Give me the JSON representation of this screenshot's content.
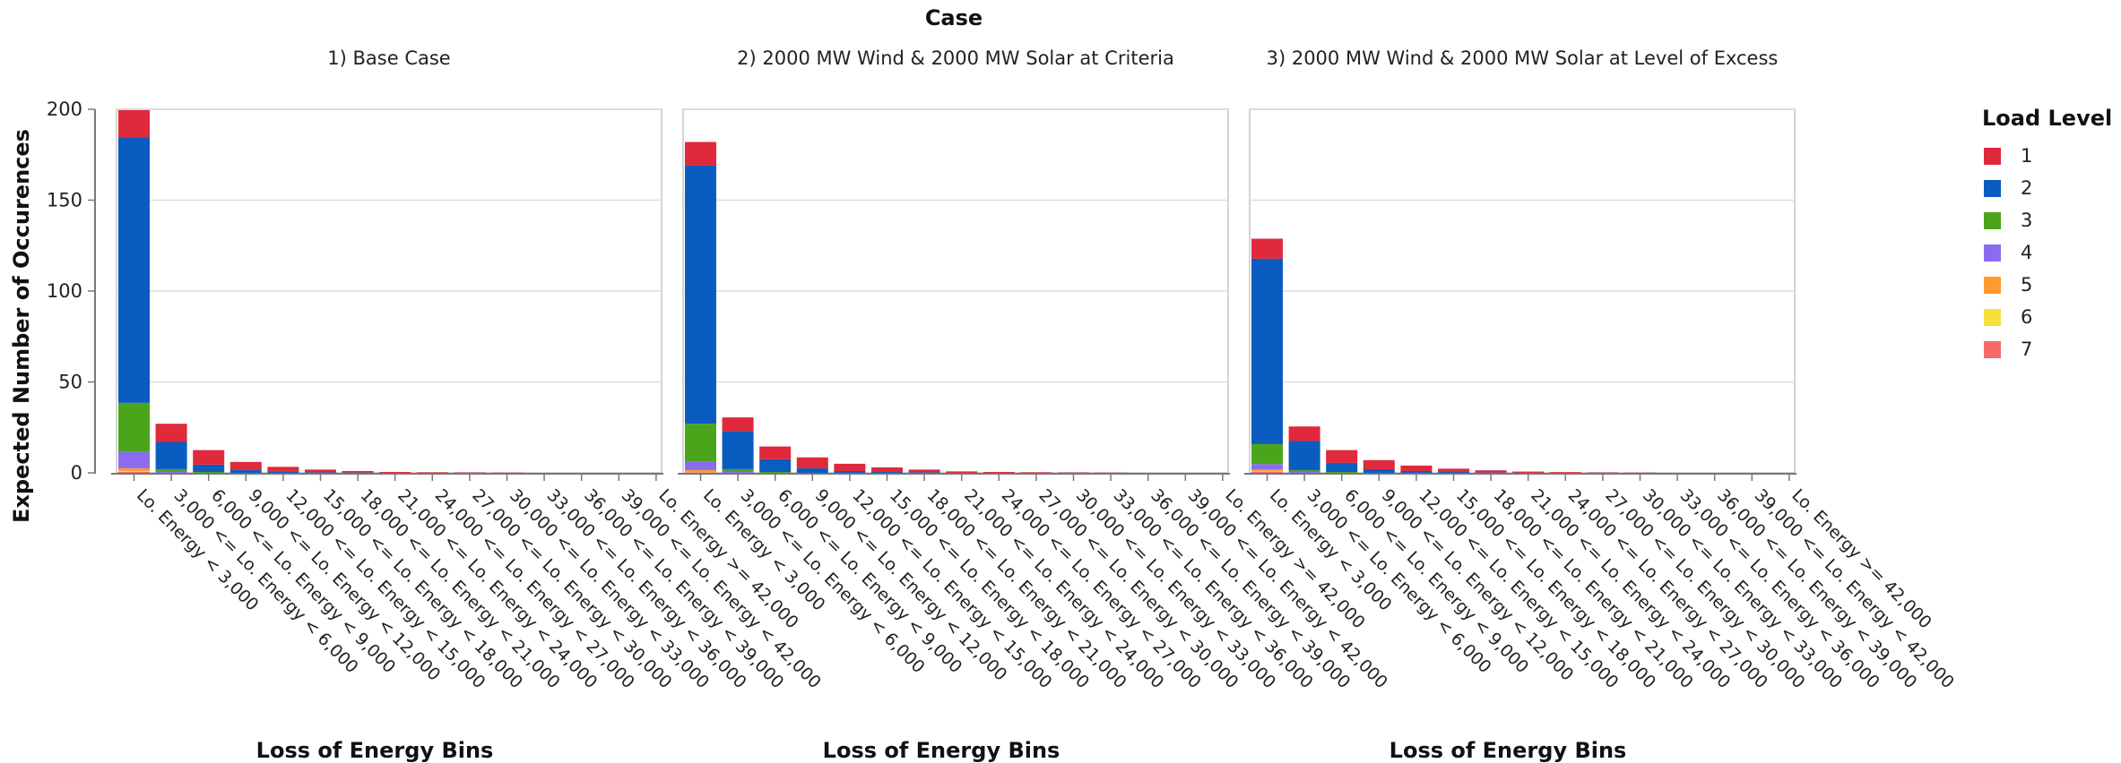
{
  "chart_data": {
    "type": "bar",
    "stacked": true,
    "title": "Case",
    "ylabel": "Expected Number of Occurences",
    "xlabel": "Loss of Energy Bins",
    "ylim": [
      0,
      200
    ],
    "yticks": [
      0,
      50,
      100,
      150,
      200
    ],
    "grid": true,
    "legend": {
      "title": "Load Level",
      "position": "right",
      "levels": [
        "1",
        "2",
        "3",
        "4",
        "5",
        "6",
        "7"
      ]
    },
    "colors": {
      "1": "#e0293b",
      "2": "#0b5cc0",
      "3": "#4aa51b",
      "4": "#8a6cf2",
      "5": "#ff9a2e",
      "6": "#f5e03e",
      "7": "#f56b6b"
    },
    "categories": [
      "Lo. Energy < 3,000",
      "3,000 <= Lo. Energy < 6,000",
      "6,000 <= Lo. Energy < 9,000",
      "9,000 <= Lo. Energy < 12,000",
      "12,000 <= Lo. Energy < 15,000",
      "15,000 <= Lo. Energy < 18,000",
      "18,000 <= Lo. Energy < 21,000",
      "21,000 <= Lo. Energy < 24,000",
      "24,000 <= Lo. Energy < 27,000",
      "27,000 <= Lo. Energy < 30,000",
      "30,000 <= Lo. Energy < 33,000",
      "33,000 <= Lo. Energy < 36,000",
      "36,000 <= Lo. Energy < 39,000",
      "39,000 <= Lo. Energy < 42,000",
      "Lo. Energy >= 42,000"
    ],
    "facets": [
      {
        "title": "1) Base Case",
        "series": [
          {
            "name": "7",
            "values": [
              0.5,
              0,
              0,
              0,
              0,
              0,
              0,
              0,
              0,
              0,
              0,
              0,
              0,
              0,
              0
            ]
          },
          {
            "name": "6",
            "values": [
              0.5,
              0,
              0,
              0,
              0,
              0,
              0,
              0,
              0,
              0,
              0,
              0,
              0,
              0,
              0
            ]
          },
          {
            "name": "5",
            "values": [
              1.5,
              0,
              0,
              0,
              0,
              0,
              0,
              0,
              0,
              0,
              0,
              0,
              0,
              0,
              0
            ]
          },
          {
            "name": "4",
            "values": [
              9,
              0.5,
              0,
              0,
              0,
              0,
              0,
              0,
              0,
              0,
              0,
              0,
              0,
              0,
              0
            ]
          },
          {
            "name": "3",
            "values": [
              27,
              1.5,
              0.5,
              0,
              0,
              0,
              0,
              0,
              0,
              0,
              0,
              0,
              0,
              0,
              0
            ]
          },
          {
            "name": "2",
            "values": [
              146,
              15,
              4,
              1.5,
              0.8,
              0.3,
              0.2,
              0,
              0,
              0,
              0,
              0,
              0,
              0,
              0
            ]
          },
          {
            "name": "1",
            "values": [
              15,
              10,
              8,
              4.5,
              2.5,
              1.5,
              0.8,
              0.5,
              0.3,
              0.2,
              0.1,
              0,
              0,
              0,
              0
            ]
          }
        ]
      },
      {
        "title": "2) 2000 MW Wind & 2000 MW Solar at Criteria",
        "series": [
          {
            "name": "7",
            "values": [
              0.3,
              0,
              0,
              0,
              0,
              0,
              0,
              0,
              0,
              0,
              0,
              0,
              0,
              0,
              0
            ]
          },
          {
            "name": "6",
            "values": [
              0.2,
              0,
              0,
              0,
              0,
              0,
              0,
              0,
              0,
              0,
              0,
              0,
              0,
              0,
              0
            ]
          },
          {
            "name": "5",
            "values": [
              1,
              0,
              0,
              0,
              0,
              0,
              0,
              0,
              0,
              0,
              0,
              0,
              0,
              0,
              0
            ]
          },
          {
            "name": "4",
            "values": [
              4.5,
              0.5,
              0,
              0,
              0,
              0,
              0,
              0,
              0,
              0,
              0,
              0,
              0,
              0,
              0
            ]
          },
          {
            "name": "3",
            "values": [
              21,
              1.5,
              0.5,
              0,
              0,
              0,
              0,
              0,
              0,
              0,
              0,
              0,
              0,
              0,
              0
            ]
          },
          {
            "name": "2",
            "values": [
              142,
              21,
              7,
              2.5,
              1,
              0.5,
              0.3,
              0,
              0,
              0,
              0,
              0,
              0,
              0,
              0
            ]
          },
          {
            "name": "1",
            "values": [
              13,
              7.5,
              7,
              6,
              4,
              2.5,
              1.5,
              0.8,
              0.5,
              0.3,
              0.2,
              0.1,
              0,
              0,
              0
            ]
          }
        ]
      },
      {
        "title": "3) 2000 MW Wind & 2000 MW Solar at Level of Excess",
        "series": [
          {
            "name": "7",
            "values": [
              0.5,
              0,
              0,
              0,
              0,
              0,
              0,
              0,
              0,
              0,
              0,
              0,
              0,
              0,
              0
            ]
          },
          {
            "name": "6",
            "values": [
              0.3,
              0,
              0,
              0,
              0,
              0,
              0,
              0,
              0,
              0,
              0,
              0,
              0,
              0,
              0
            ]
          },
          {
            "name": "5",
            "values": [
              1,
              0,
              0,
              0,
              0,
              0,
              0,
              0,
              0,
              0,
              0,
              0,
              0,
              0,
              0
            ]
          },
          {
            "name": "4",
            "values": [
              3,
              0.5,
              0,
              0,
              0,
              0,
              0,
              0,
              0,
              0,
              0,
              0,
              0,
              0,
              0
            ]
          },
          {
            "name": "3",
            "values": [
              11,
              1,
              0.5,
              0,
              0,
              0,
              0,
              0,
              0,
              0,
              0,
              0,
              0,
              0,
              0
            ]
          },
          {
            "name": "2",
            "values": [
              102,
              16,
              5,
              2,
              1,
              0.5,
              0.2,
              0,
              0,
              0,
              0,
              0,
              0,
              0,
              0
            ]
          },
          {
            "name": "1",
            "values": [
              11,
              8,
              7,
              5,
              3,
              1.8,
              1.2,
              0.7,
              0.4,
              0.2,
              0.1,
              0,
              0,
              0,
              0
            ]
          }
        ]
      }
    ]
  }
}
